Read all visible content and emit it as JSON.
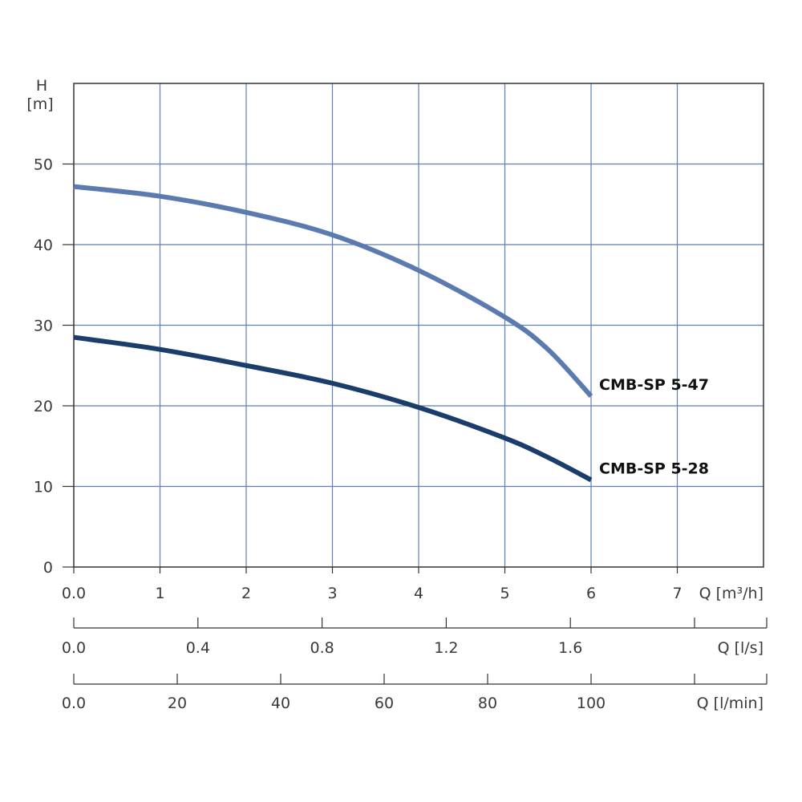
{
  "chart_data": {
    "type": "line",
    "y_axis": {
      "label_top": "H",
      "label_unit": "[m]",
      "ylim": [
        0,
        60
      ],
      "ticks": [
        0,
        10,
        20,
        30,
        40,
        50
      ]
    },
    "x_axes": [
      {
        "unit_label": "Q [m³/h]",
        "xlim": [
          0,
          8
        ],
        "ticks": [
          "0.0",
          "1",
          "2",
          "3",
          "4",
          "5",
          "6",
          "7"
        ],
        "tick_values": [
          0,
          1,
          2,
          3,
          4,
          5,
          6,
          7
        ]
      },
      {
        "unit_label": "Q [l/s]",
        "ticks": [
          "0.0",
          "0.4",
          "0.8",
          "1.2",
          "1.6"
        ],
        "tick_values": [
          0,
          0.4,
          0.8,
          1.2,
          1.6
        ],
        "minor_tick_values": [
          2.0
        ]
      },
      {
        "unit_label": "Q [l/min]",
        "ticks": [
          "0.0",
          "20",
          "40",
          "60",
          "80",
          "100"
        ],
        "tick_values": [
          0,
          20,
          40,
          60,
          80,
          100
        ],
        "minor_tick_values": [
          120
        ]
      }
    ],
    "grid": true,
    "series": [
      {
        "name": "CMB-SP 5-47",
        "color": "#5b7bb0",
        "x": [
          0,
          1,
          2,
          3,
          4,
          5,
          5.5,
          6
        ],
        "y": [
          47.2,
          46.0,
          44.0,
          41.2,
          36.8,
          31.0,
          27.0,
          21.2
        ]
      },
      {
        "name": "CMB-SP 5-28",
        "color": "#1a3d6b",
        "x": [
          0,
          1,
          2,
          3,
          4,
          5,
          5.5,
          6
        ],
        "y": [
          28.5,
          27.0,
          25.0,
          22.8,
          19.8,
          16.0,
          13.6,
          10.8
        ]
      }
    ]
  }
}
